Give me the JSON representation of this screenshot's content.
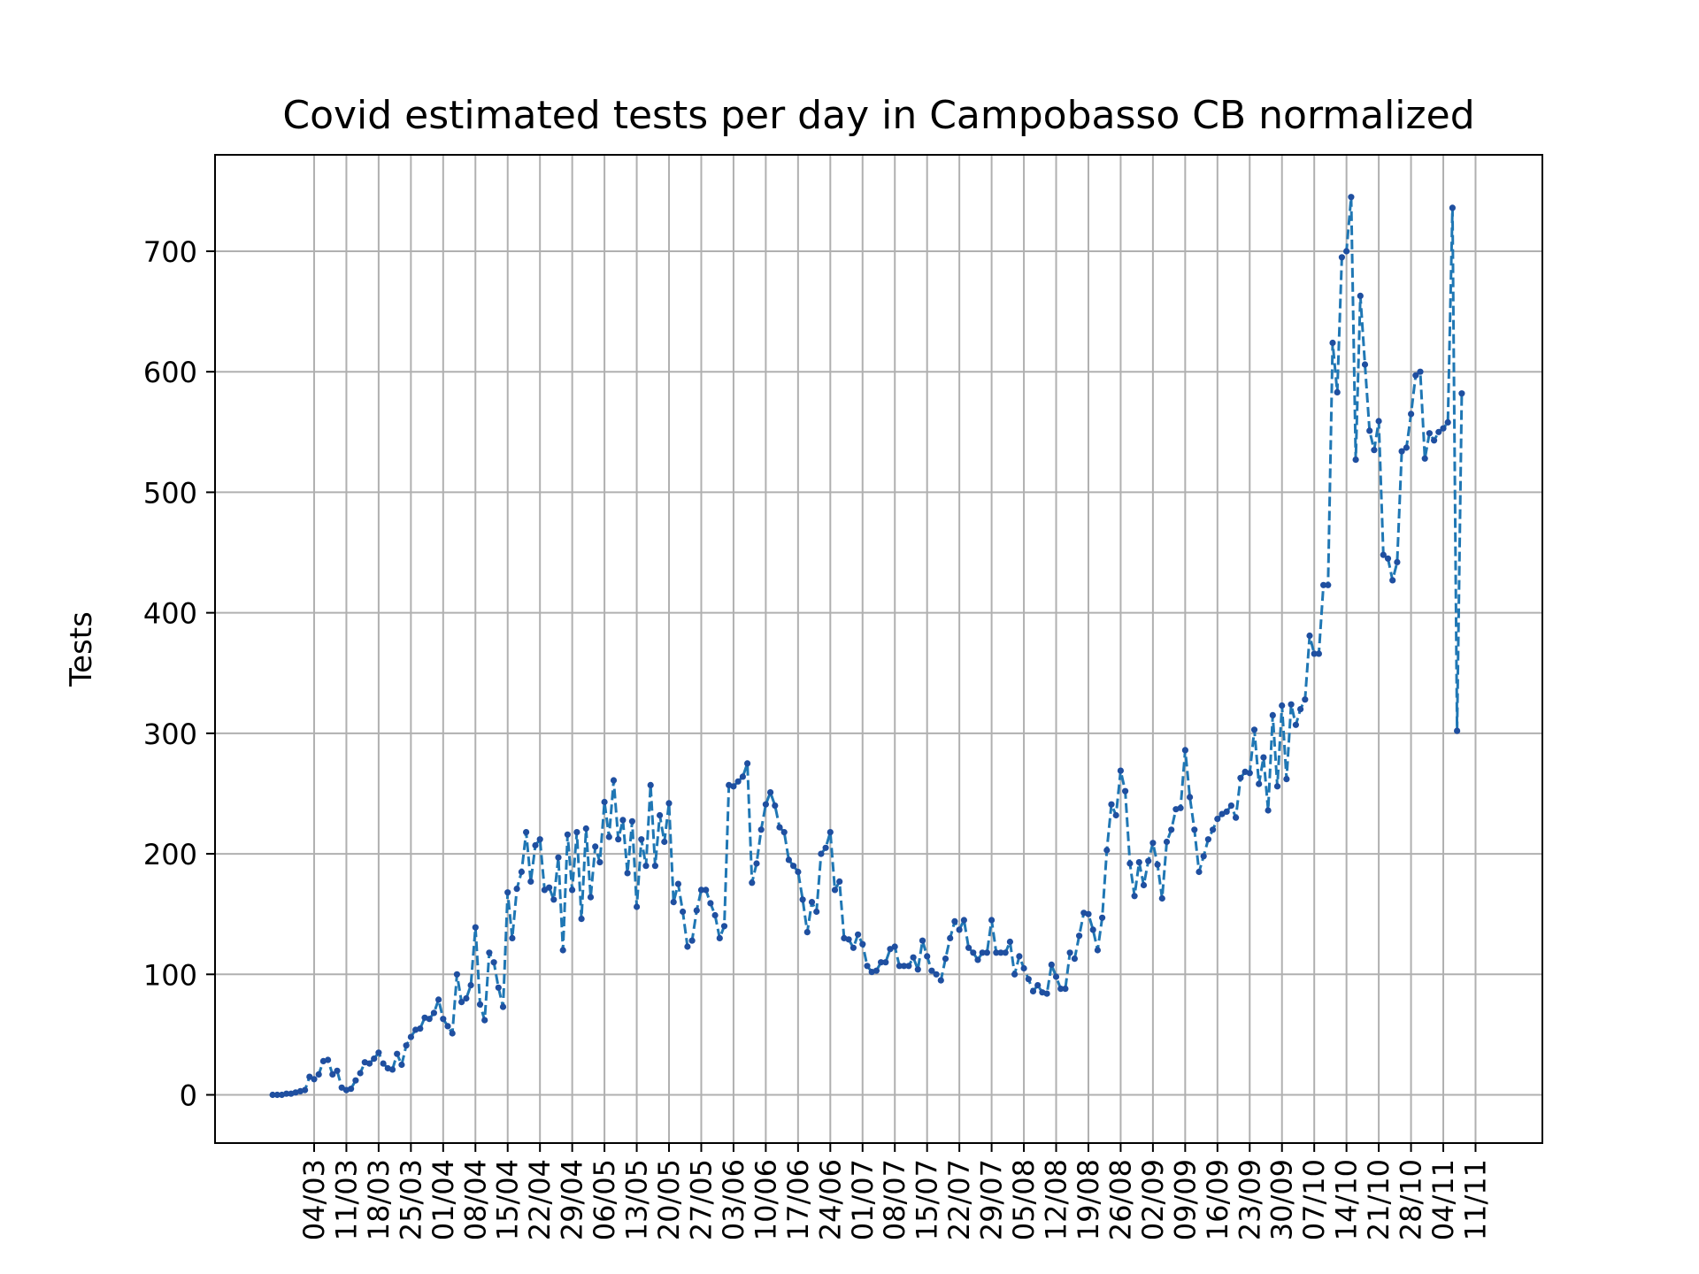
{
  "chart_data": {
    "type": "line",
    "title": "Covid estimated tests per day in Campobasso CB normalized",
    "xlabel": "",
    "ylabel": "Tests",
    "ylim": [
      -40,
      780
    ],
    "yticks": [
      0,
      100,
      200,
      300,
      400,
      500,
      600,
      700
    ],
    "grid": true,
    "line_color": "#1f77b4",
    "marker_color": "#1f4fa0",
    "x_start": "2020-02-24",
    "x_end": "2020-11-13",
    "xtick_dates": [
      "2020-03-04",
      "2020-03-11",
      "2020-03-18",
      "2020-03-25",
      "2020-04-01",
      "2020-04-08",
      "2020-04-15",
      "2020-04-22",
      "2020-04-29",
      "2020-05-06",
      "2020-05-13",
      "2020-05-20",
      "2020-05-27",
      "2020-06-03",
      "2020-06-10",
      "2020-06-17",
      "2020-06-24",
      "2020-07-01",
      "2020-07-08",
      "2020-07-15",
      "2020-07-22",
      "2020-07-29",
      "2020-08-05",
      "2020-08-12",
      "2020-08-19",
      "2020-08-26",
      "2020-09-02",
      "2020-09-09",
      "2020-09-16",
      "2020-09-23",
      "2020-09-30",
      "2020-10-07",
      "2020-10-14",
      "2020-10-21",
      "2020-10-28",
      "2020-11-04",
      "2020-11-11"
    ],
    "xtick_labels": [
      "04/03",
      "11/03",
      "18/03",
      "25/03",
      "01/04",
      "08/04",
      "15/04",
      "22/04",
      "29/04",
      "06/05",
      "13/05",
      "20/05",
      "27/05",
      "03/06",
      "10/06",
      "17/06",
      "24/06",
      "01/07",
      "08/07",
      "15/07",
      "22/07",
      "29/07",
      "05/08",
      "12/08",
      "19/08",
      "26/08",
      "02/09",
      "09/09",
      "16/09",
      "23/09",
      "30/09",
      "07/10",
      "14/10",
      "21/10",
      "28/10",
      "04/11",
      "11/11"
    ],
    "series": [
      {
        "values": [
          0,
          0,
          0,
          1,
          1,
          2,
          3,
          4,
          15,
          13,
          17,
          28,
          29,
          17,
          20,
          6,
          4,
          5,
          12,
          18,
          27,
          26,
          30,
          35,
          26,
          22,
          21,
          34,
          25,
          41,
          48,
          54,
          55,
          64,
          63,
          68,
          79,
          63,
          57,
          51,
          100,
          77,
          80,
          91,
          139,
          75,
          62,
          118,
          110,
          89,
          73,
          168,
          130,
          171,
          185,
          218,
          177,
          207,
          212,
          170,
          172,
          162,
          197,
          120,
          216,
          170,
          218,
          146,
          221,
          164,
          206,
          193,
          243,
          214,
          261,
          212,
          228,
          184,
          227,
          156,
          212,
          190,
          257,
          190,
          232,
          210,
          242,
          160,
          175,
          152,
          123,
          128,
          153,
          170,
          170,
          159,
          149,
          130,
          140,
          257,
          256,
          260,
          264,
          275,
          176,
          192,
          220,
          241,
          251,
          240,
          222,
          218,
          195,
          190,
          185,
          162,
          135,
          160,
          152,
          200,
          205,
          218,
          170,
          177,
          130,
          129,
          122,
          133,
          125,
          107,
          102,
          103,
          110,
          110,
          121,
          123,
          107,
          107,
          107,
          114,
          104,
          128,
          115,
          103,
          100,
          95,
          113,
          130,
          144,
          137,
          145,
          122,
          118,
          112,
          118,
          118,
          145,
          118,
          118,
          118,
          127,
          100,
          115,
          105,
          96,
          86,
          91,
          85,
          84,
          108,
          98,
          88,
          88,
          118,
          113,
          132,
          151,
          150,
          137,
          120,
          147,
          203,
          241,
          232,
          269,
          252,
          192,
          165,
          193,
          174,
          194,
          209,
          191,
          163,
          210,
          220,
          237,
          238,
          286,
          247,
          220,
          185,
          198,
          212,
          220,
          229,
          233,
          235,
          240,
          230,
          263,
          268,
          267,
          303,
          258,
          280,
          236,
          315,
          256,
          323,
          262,
          324,
          307,
          320,
          328,
          381,
          366,
          366,
          423,
          423,
          624,
          583,
          695,
          700,
          745,
          527,
          663,
          606,
          551,
          535,
          559,
          448,
          445,
          427,
          442,
          534,
          537,
          565,
          597,
          600,
          528,
          549,
          543,
          550,
          553,
          558,
          736,
          302,
          582
        ]
      }
    ]
  }
}
